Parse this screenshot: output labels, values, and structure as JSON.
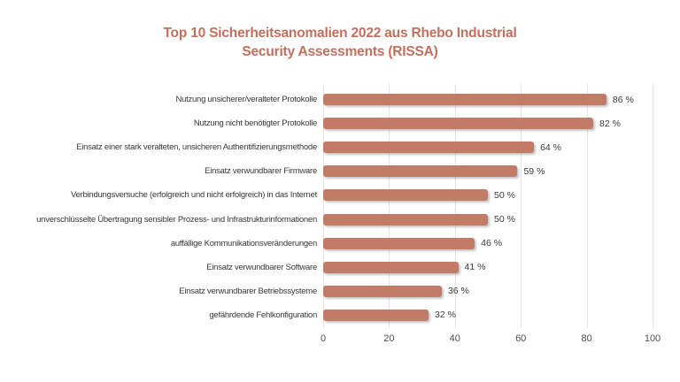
{
  "title": {
    "line1": "Top 10 Sicherheitsanomalien 2022 aus Rhebo Industrial",
    "line2": "Security Assessments (RISSA)"
  },
  "colors": {
    "title": "#c2705e",
    "bar": "#c17b67",
    "grid": "#e4e4e4",
    "category_label": "#383838",
    "value_label": "#3b3b3b",
    "tick_label": "#4f4f4f"
  },
  "chart_data": {
    "type": "bar",
    "orientation": "horizontal",
    "title": "Top 10 Sicherheitsanomalien 2022 aus Rhebo Industrial Security Assessments (RISSA)",
    "categories": [
      "Nutzung unsicherer/veralteter Protokolle",
      "Nutzung nicht benötigter Protokolle",
      "Einsatz einer stark veralteten, unsicheren Authentifizierungsmethode",
      "Einsatz verwundbarer Firmware",
      "Verbindungsversuche (erfolgreich und nicht erfolgreich) in das Internet",
      "unverschlüsselte Übertragung sensibler Prozess- und Infrastrukturinformationen",
      "auffällige Kommunikationsveränderungen",
      "Einsatz verwundbarer Software",
      "Einsatz verwundbarer Betriebssysteme",
      "gefährdende Fehlkonfiguration"
    ],
    "values": [
      86,
      82,
      64,
      59,
      50,
      50,
      46,
      41,
      36,
      32
    ],
    "value_labels": [
      "86 %",
      "82 %",
      "64 %",
      "59 %",
      "50 %",
      "50 %",
      "46 %",
      "41 %",
      "36 %",
      "32 %"
    ],
    "unit": "%",
    "xlabel": "",
    "ylabel": "",
    "xlim": [
      0,
      100
    ],
    "x_ticks": [
      0,
      20,
      40,
      60,
      80,
      100
    ],
    "grid": "vertical",
    "legend": false
  }
}
